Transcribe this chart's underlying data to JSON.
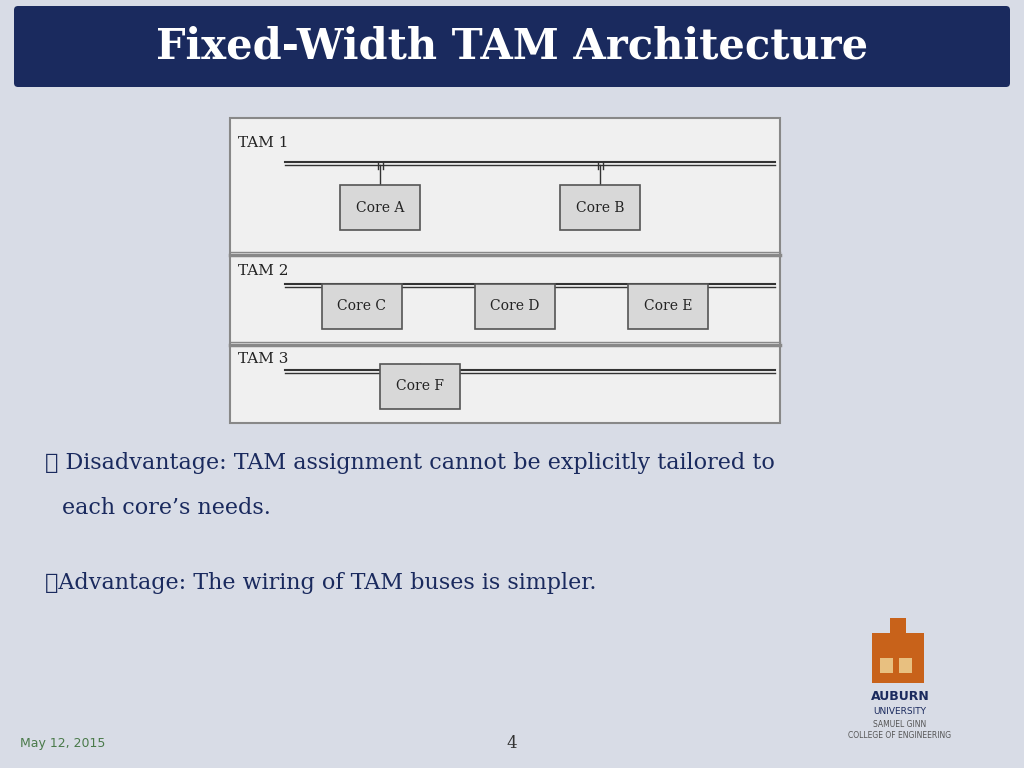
{
  "title": "Fixed-Width TAM Architecture",
  "title_bg_color": "#1a2a5e",
  "title_text_color": "#ffffff",
  "slide_bg_color": "#d8dce6",
  "diagram_border_color": "#888888",
  "core_fill_color": "#d8d8d8",
  "core_border_color": "#555555",
  "tam_rows": [
    {
      "label": "TAM 1",
      "cores": [
        "Core A",
        "Core B"
      ]
    },
    {
      "label": "TAM 2",
      "cores": [
        "Core C",
        "Core D",
        "Core E"
      ]
    },
    {
      "label": "TAM 3",
      "cores": [
        "Core F"
      ]
    }
  ],
  "bullet1a": "❖ Disadvantage: TAM assignment cannot be explicitly tailored to",
  "bullet1b": "each core’s needs.",
  "bullet2": "❖Advantage: The wiring of TAM buses is simpler.",
  "date_text": "May 12, 2015",
  "page_num": "4",
  "date_color": "#4a7a4a",
  "body_text_color": "#1a2a5e",
  "auburn_text": "AUBURN",
  "university_text": "UNIVERSITY",
  "college_text": "SAMUEL GINN\nCOLLEGE OF ENGINEERING",
  "auburn_color": "#1a2a5e",
  "college_color": "#555555",
  "tower_color": "#c8621a"
}
